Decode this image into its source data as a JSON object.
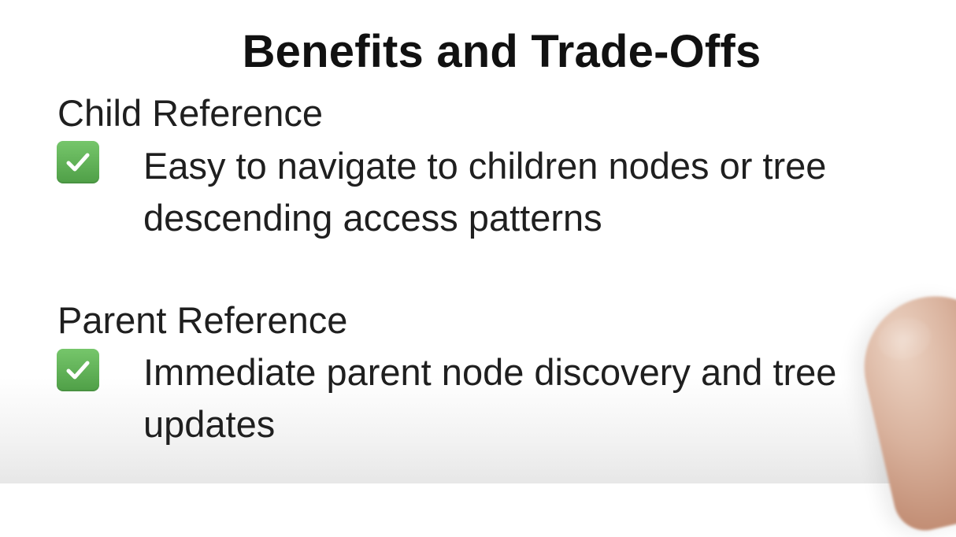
{
  "slide": {
    "title": "Benefits and Trade-Offs",
    "sections": [
      {
        "heading": "Child Reference",
        "item": "Easy to navigate to children nodes or tree descending access patterns",
        "icon": "check-icon"
      },
      {
        "heading": "Parent Reference",
        "item": "Immediate parent node discovery and tree updates",
        "icon": "check-icon"
      }
    ]
  },
  "colors": {
    "check_background": "#5eab55",
    "text": "#1f1f1f"
  }
}
